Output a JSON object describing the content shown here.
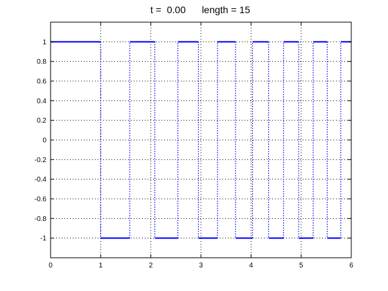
{
  "chart_data": {
    "type": "line",
    "title": "t =  0.00      length = 15",
    "xlabel": "",
    "ylabel": "",
    "xlim": [
      0,
      6
    ],
    "ylim": [
      -1.2,
      1.2
    ],
    "x_ticks": [
      0,
      1,
      2,
      3,
      4,
      5,
      6
    ],
    "x_tick_labels": [
      "0",
      "1",
      "2",
      "3",
      "4",
      "5",
      "6"
    ],
    "y_ticks": [
      1,
      0.8,
      0.6,
      0.4,
      0.2,
      0,
      -0.2,
      -0.4,
      -0.6,
      -0.8,
      -1
    ],
    "y_tick_labels": [
      "1",
      "0.8",
      "0.6",
      "0.4",
      "0.2",
      "0",
      "-0.2",
      "-0.4",
      "-0.6",
      "-0.8",
      "-1"
    ],
    "grid": true,
    "series": [
      {
        "color": "#0000ff",
        "segments": [
          {
            "x": [
              0.0,
              1.0
            ],
            "y": 1
          },
          {
            "x": [
              1.0,
              1.58
            ],
            "y": -1
          },
          {
            "x": [
              1.58,
              2.08
            ],
            "y": 1
          },
          {
            "x": [
              2.08,
              2.54
            ],
            "y": -1
          },
          {
            "x": [
              2.54,
              2.95
            ],
            "y": 1
          },
          {
            "x": [
              2.95,
              3.33
            ],
            "y": -1
          },
          {
            "x": [
              3.33,
              3.69
            ],
            "y": 1
          },
          {
            "x": [
              3.69,
              4.03
            ],
            "y": -1
          },
          {
            "x": [
              4.03,
              4.35
            ],
            "y": 1
          },
          {
            "x": [
              4.35,
              4.65
            ],
            "y": -1
          },
          {
            "x": [
              4.65,
              4.95
            ],
            "y": 1
          },
          {
            "x": [
              4.95,
              5.24
            ],
            "y": -1
          },
          {
            "x": [
              5.24,
              5.52
            ],
            "y": 1
          },
          {
            "x": [
              5.52,
              5.79
            ],
            "y": -1
          },
          {
            "x": [
              5.79,
              6.0
            ],
            "y": 1
          }
        ]
      }
    ]
  }
}
